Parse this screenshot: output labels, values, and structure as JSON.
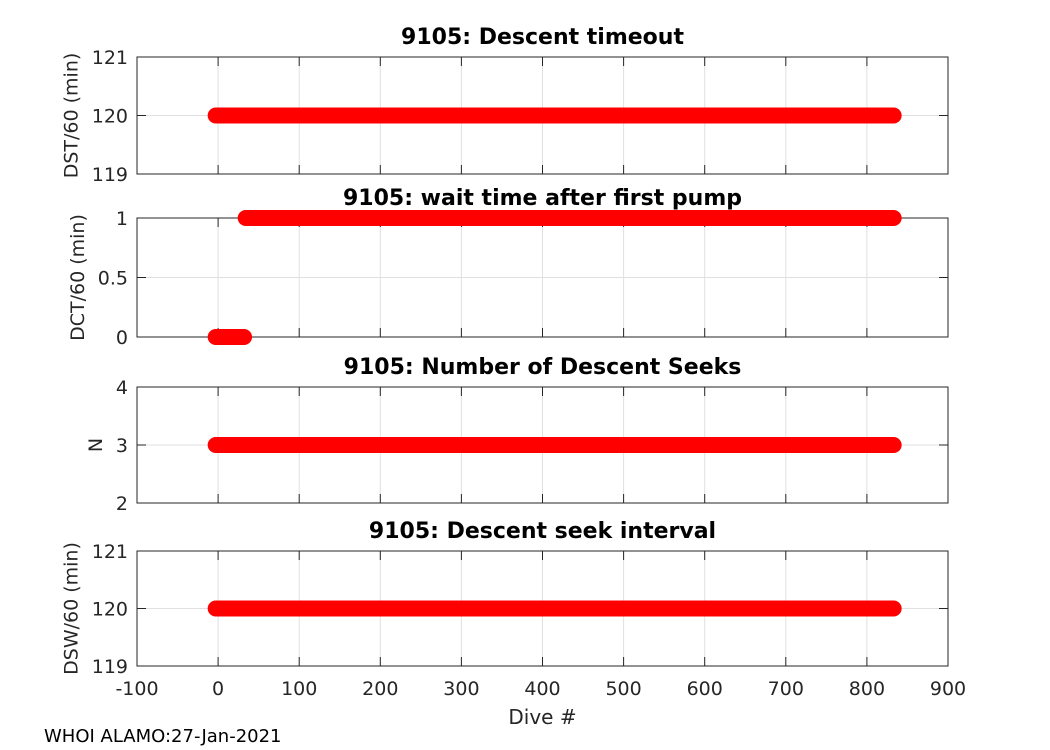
{
  "figure": {
    "footer": "WHOI ALAMO:27-Jan-2021",
    "xlabel": "Dive #",
    "colors": {
      "line": "#ff0000",
      "grid": "#e0e0e0",
      "axis": "#262626",
      "tick_label": "#262626",
      "title": "#000000",
      "footer": "#000000",
      "plot_bg": "#ffffff"
    }
  },
  "chart_data": [
    {
      "type": "line",
      "title": "9105: Descent timeout",
      "xlabel": "",
      "ylabel": "DST/60 (min)",
      "xlim": [
        -100,
        900
      ],
      "ylim": [
        119,
        121
      ],
      "xticks": [
        -100,
        0,
        100,
        200,
        300,
        400,
        500,
        600,
        700,
        800,
        900
      ],
      "yticks": [
        119,
        120,
        121
      ],
      "grid": true,
      "legend": false,
      "series": [
        {
          "name": "DST/60",
          "color": "#ff0000",
          "style": "thick-line-round-cap",
          "segments": [
            {
              "y": 120,
              "x_start": -3,
              "x_end": 833
            }
          ]
        }
      ]
    },
    {
      "type": "line",
      "title": "9105: wait time after first pump",
      "xlabel": "",
      "ylabel": "DCT/60 (min)",
      "xlim": [
        -100,
        900
      ],
      "ylim": [
        0,
        1
      ],
      "xticks": [
        -100,
        0,
        100,
        200,
        300,
        400,
        500,
        600,
        700,
        800,
        900
      ],
      "yticks": [
        0,
        0.5,
        1
      ],
      "grid": true,
      "legend": false,
      "series": [
        {
          "name": "DCT/60",
          "color": "#ff0000",
          "style": "thick-line-round-cap",
          "segments": [
            {
              "y": 0,
              "x_start": -3,
              "x_end": 32
            },
            {
              "y": 1,
              "x_start": 34,
              "x_end": 833
            }
          ]
        }
      ]
    },
    {
      "type": "line",
      "title": "9105: Number of Descent Seeks",
      "xlabel": "",
      "ylabel": "N",
      "xlim": [
        -100,
        900
      ],
      "ylim": [
        2,
        4
      ],
      "xticks": [
        -100,
        0,
        100,
        200,
        300,
        400,
        500,
        600,
        700,
        800,
        900
      ],
      "yticks": [
        2,
        3,
        4
      ],
      "grid": true,
      "legend": false,
      "series": [
        {
          "name": "N",
          "color": "#ff0000",
          "style": "thick-line-round-cap",
          "segments": [
            {
              "y": 3,
              "x_start": -3,
              "x_end": 833
            }
          ]
        }
      ]
    },
    {
      "type": "line",
      "title": "9105: Descent seek interval",
      "xlabel": "Dive #",
      "ylabel": "DSW/60 (min)",
      "xlim": [
        -100,
        900
      ],
      "ylim": [
        119,
        121
      ],
      "xticks": [
        -100,
        0,
        100,
        200,
        300,
        400,
        500,
        600,
        700,
        800,
        900
      ],
      "yticks": [
        119,
        120,
        121
      ],
      "grid": true,
      "legend": false,
      "series": [
        {
          "name": "DSW/60",
          "color": "#ff0000",
          "style": "thick-line-round-cap",
          "segments": [
            {
              "y": 120,
              "x_start": -3,
              "x_end": 833
            }
          ]
        }
      ]
    }
  ]
}
